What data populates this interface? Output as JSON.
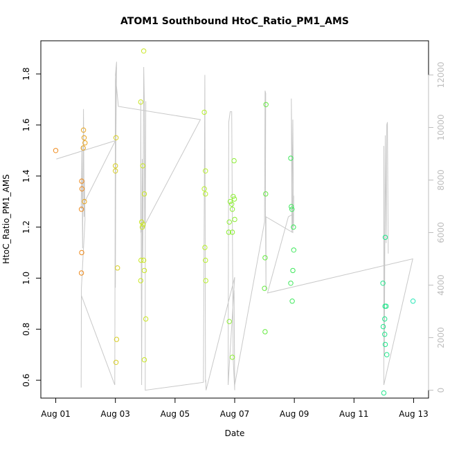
{
  "chart_data": {
    "type": "scatter",
    "title": "ATOM1 Southbound HtoC_Ratio_PM1_AMS",
    "xlabel": "Date",
    "ylabel": "HtoC_Ratio_PM1_AMS",
    "x_tick_labels": [
      "Aug 01",
      "Aug 03",
      "Aug 05",
      "Aug 07",
      "Aug 09",
      "Aug 11",
      "Aug 13"
    ],
    "x_tick_days": [
      1,
      3,
      5,
      7,
      9,
      11,
      13
    ],
    "xlim": [
      0.5,
      13.5
    ],
    "y_ticks": [
      0.6,
      0.8,
      1.0,
      1.2,
      1.4,
      1.6,
      1.8
    ],
    "y_tick_labels": [
      "0.6",
      "0.8",
      "1.0",
      "1.2",
      "1.4",
      "1.6",
      "1.8"
    ],
    "ylim": [
      0.53,
      1.93
    ],
    "y2_ticks": [
      0,
      2000,
      4000,
      6000,
      8000,
      10000,
      12000
    ],
    "y2_tick_labels": [
      "0",
      "2000",
      "4000",
      "6000",
      "8000",
      "10000",
      "12000"
    ],
    "y2lim": [
      -300,
      13300
    ],
    "grid": false,
    "point_color_scale": "time-ordered gradient orange → yellow → green → cyan",
    "point_colors": [
      "#ee8a1c",
      "#e9a521",
      "#d7cd22",
      "#c9e623",
      "#b6f02a",
      "#8cee33",
      "#63ea3e",
      "#3de85a",
      "#22e68c",
      "#26e6b6"
    ],
    "series": [
      {
        "values": [
          {
            "x": 1.0,
            "y": 1.5,
            "c": 0
          },
          {
            "x": 1.87,
            "y": 1.38,
            "c": 0
          },
          {
            "x": 1.88,
            "y": 1.35,
            "c": 0
          },
          {
            "x": 1.86,
            "y": 1.27,
            "c": 0
          },
          {
            "x": 1.87,
            "y": 1.1,
            "c": 0
          },
          {
            "x": 1.86,
            "y": 1.02,
            "c": 0
          },
          {
            "x": 1.93,
            "y": 1.58,
            "c": 1
          },
          {
            "x": 1.95,
            "y": 1.55,
            "c": 1
          },
          {
            "x": 1.98,
            "y": 1.53,
            "c": 1
          },
          {
            "x": 1.92,
            "y": 1.51,
            "c": 1
          },
          {
            "x": 1.96,
            "y": 1.3,
            "c": 1
          },
          {
            "x": 3.02,
            "y": 1.55,
            "c": 2
          },
          {
            "x": 3.0,
            "y": 1.44,
            "c": 2
          },
          {
            "x": 3.0,
            "y": 1.42,
            "c": 2
          },
          {
            "x": 3.07,
            "y": 1.04,
            "c": 2
          },
          {
            "x": 3.04,
            "y": 0.76,
            "c": 2
          },
          {
            "x": 3.02,
            "y": 0.67,
            "c": 2
          },
          {
            "x": 3.95,
            "y": 1.89,
            "c": 3
          },
          {
            "x": 3.85,
            "y": 1.69,
            "c": 3
          },
          {
            "x": 3.92,
            "y": 1.44,
            "c": 3
          },
          {
            "x": 3.97,
            "y": 1.33,
            "c": 3
          },
          {
            "x": 3.88,
            "y": 1.22,
            "c": 3
          },
          {
            "x": 3.93,
            "y": 1.21,
            "c": 3
          },
          {
            "x": 3.9,
            "y": 1.2,
            "c": 3
          },
          {
            "x": 3.86,
            "y": 1.07,
            "c": 3
          },
          {
            "x": 3.95,
            "y": 1.07,
            "c": 3
          },
          {
            "x": 3.97,
            "y": 1.03,
            "c": 3
          },
          {
            "x": 3.85,
            "y": 0.99,
            "c": 3
          },
          {
            "x": 4.02,
            "y": 0.84,
            "c": 3
          },
          {
            "x": 3.97,
            "y": 0.68,
            "c": 3
          },
          {
            "x": 5.98,
            "y": 1.65,
            "c": 4
          },
          {
            "x": 6.02,
            "y": 1.42,
            "c": 4
          },
          {
            "x": 5.98,
            "y": 1.35,
            "c": 4
          },
          {
            "x": 6.02,
            "y": 1.33,
            "c": 4
          },
          {
            "x": 6.0,
            "y": 1.12,
            "c": 4
          },
          {
            "x": 6.02,
            "y": 1.07,
            "c": 4
          },
          {
            "x": 6.03,
            "y": 0.99,
            "c": 4
          },
          {
            "x": 6.98,
            "y": 1.46,
            "c": 5
          },
          {
            "x": 6.95,
            "y": 1.32,
            "c": 5
          },
          {
            "x": 6.99,
            "y": 1.31,
            "c": 5
          },
          {
            "x": 6.85,
            "y": 1.3,
            "c": 5
          },
          {
            "x": 6.9,
            "y": 1.29,
            "c": 5
          },
          {
            "x": 6.92,
            "y": 1.27,
            "c": 5
          },
          {
            "x": 7.0,
            "y": 1.23,
            "c": 5
          },
          {
            "x": 6.82,
            "y": 1.22,
            "c": 5
          },
          {
            "x": 6.92,
            "y": 1.18,
            "c": 5
          },
          {
            "x": 6.8,
            "y": 1.18,
            "c": 5
          },
          {
            "x": 6.82,
            "y": 0.83,
            "c": 5
          },
          {
            "x": 6.92,
            "y": 0.69,
            "c": 5
          },
          {
            "x": 8.05,
            "y": 1.68,
            "c": 6
          },
          {
            "x": 8.04,
            "y": 1.33,
            "c": 6
          },
          {
            "x": 8.02,
            "y": 1.08,
            "c": 6
          },
          {
            "x": 8.0,
            "y": 0.96,
            "c": 6
          },
          {
            "x": 8.02,
            "y": 0.79,
            "c": 6
          },
          {
            "x": 8.88,
            "y": 1.47,
            "c": 7
          },
          {
            "x": 8.9,
            "y": 1.28,
            "c": 7
          },
          {
            "x": 8.92,
            "y": 1.27,
            "c": 7
          },
          {
            "x": 8.97,
            "y": 1.2,
            "c": 7
          },
          {
            "x": 8.98,
            "y": 1.11,
            "c": 7
          },
          {
            "x": 8.95,
            "y": 1.03,
            "c": 7
          },
          {
            "x": 8.88,
            "y": 0.98,
            "c": 7
          },
          {
            "x": 8.93,
            "y": 0.91,
            "c": 7
          },
          {
            "x": 12.05,
            "y": 1.16,
            "c": 8
          },
          {
            "x": 11.97,
            "y": 0.98,
            "c": 8
          },
          {
            "x": 12.04,
            "y": 0.89,
            "c": 8
          },
          {
            "x": 12.08,
            "y": 0.89,
            "c": 8
          },
          {
            "x": 12.03,
            "y": 0.84,
            "c": 8
          },
          {
            "x": 11.98,
            "y": 0.81,
            "c": 8
          },
          {
            "x": 12.03,
            "y": 0.78,
            "c": 8
          },
          {
            "x": 12.05,
            "y": 0.74,
            "c": 8
          },
          {
            "x": 12.1,
            "y": 0.7,
            "c": 8
          },
          {
            "x": 12.0,
            "y": 0.55,
            "c": 8
          },
          {
            "x": 12.98,
            "y": 0.91,
            "c": 9
          }
        ]
      },
      {
        "axis": "right",
        "color": "#c8c8c8",
        "points": [
          [
            1.02,
            8800
          ],
          [
            3.0,
            9500
          ],
          [
            1.85,
            6900
          ],
          [
            1.88,
            9300
          ],
          [
            1.9,
            5400
          ],
          [
            1.93,
            10700
          ],
          [
            1.95,
            6600
          ],
          [
            1.96,
            8000
          ],
          [
            1.98,
            6500
          ],
          [
            1.86,
            3900
          ],
          [
            1.85,
            100
          ],
          [
            1.86,
            3600
          ],
          [
            2.98,
            200
          ],
          [
            3.0,
            11800
          ],
          [
            3.02,
            12300
          ],
          [
            3.0,
            3900
          ],
          [
            3.0,
            7400
          ],
          [
            3.04,
            12500
          ],
          [
            3.0,
            12000
          ],
          [
            3.1,
            10800
          ],
          [
            5.85,
            10300
          ],
          [
            3.85,
            6000
          ],
          [
            3.85,
            11000
          ],
          [
            3.88,
            200
          ],
          [
            3.9,
            8800
          ],
          [
            3.92,
            5000
          ],
          [
            3.95,
            12300
          ],
          [
            3.97,
            11000
          ],
          [
            3.98,
            6200
          ],
          [
            4.02,
            11000
          ],
          [
            4.0,
            5800
          ],
          [
            4.0,
            0
          ],
          [
            5.95,
            300
          ],
          [
            5.98,
            7300
          ],
          [
            6.0,
            12000
          ],
          [
            6.02,
            300
          ],
          [
            6.03,
            400
          ],
          [
            6.04,
            0
          ],
          [
            7.0,
            4300
          ],
          [
            6.78,
            200
          ],
          [
            6.8,
            10200
          ],
          [
            6.85,
            10600
          ],
          [
            6.9,
            10600
          ],
          [
            6.95,
            1200
          ],
          [
            7.0,
            0
          ],
          [
            6.98,
            3800
          ],
          [
            7.0,
            200
          ],
          [
            8.0,
            6400
          ],
          [
            8.02,
            11400
          ],
          [
            8.04,
            11300
          ],
          [
            8.03,
            7000
          ],
          [
            8.05,
            3800
          ],
          [
            8.05,
            6600
          ],
          [
            8.95,
            6000
          ],
          [
            8.9,
            11100
          ],
          [
            8.92,
            6000
          ],
          [
            8.95,
            10300
          ],
          [
            8.97,
            6600
          ],
          [
            8.98,
            7400
          ],
          [
            8.97,
            6200
          ],
          [
            8.95,
            6700
          ],
          [
            8.8,
            6600
          ],
          [
            8.1,
            3700
          ],
          [
            12.97,
            5000
          ],
          [
            12.0,
            200
          ],
          [
            12.0,
            9300
          ],
          [
            12.02,
            1300
          ],
          [
            12.05,
            9700
          ],
          [
            12.08,
            5600
          ],
          [
            12.1,
            10100
          ],
          [
            12.12,
            10200
          ],
          [
            12.15,
            5200
          ]
        ]
      }
    ]
  }
}
